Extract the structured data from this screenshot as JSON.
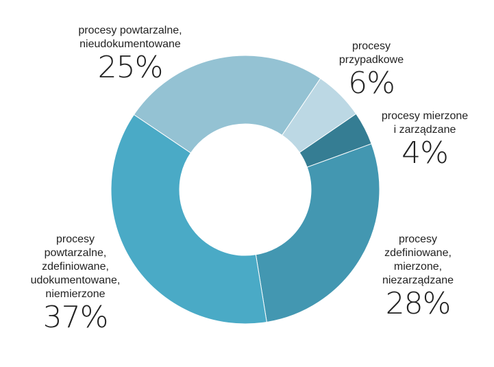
{
  "chart_data": {
    "type": "pie",
    "variant": "donut",
    "title": "",
    "slices": [
      {
        "label": "procesy przypadkowe",
        "label_lines": "procesy\nprzypadkowe",
        "value": 6,
        "value_label": "6%",
        "color": "#bcd8e4"
      },
      {
        "label": "procesy mierzone i zarządzane",
        "label_lines": "procesy mierzone\ni zarządzane",
        "value": 4,
        "value_label": "4%",
        "color": "#357d93"
      },
      {
        "label": "procesy zdefiniowane, mierzone, niezarządzane",
        "label_lines": "procesy\nzdefiniowane,\nmierzone,\nniezarządzane",
        "value": 28,
        "value_label": "28%",
        "color": "#4397b1"
      },
      {
        "label": "procesy powtarzalne, zdefiniowane, udokumentowane, niemierzone",
        "label_lines": "procesy\npowtarzalne,\nzdefiniowane,\nudokumentowane,\nniemierzone",
        "value": 37,
        "value_label": "37%",
        "color": "#4aaac6"
      },
      {
        "label": "procesy powtarzalne, nieudokumentowane",
        "label_lines": "procesy powtarzalne,\nnieudokumentowane",
        "value": 25,
        "value_label": "25%",
        "color": "#94c2d3"
      }
    ],
    "legend": "none",
    "labels_outside": true
  }
}
